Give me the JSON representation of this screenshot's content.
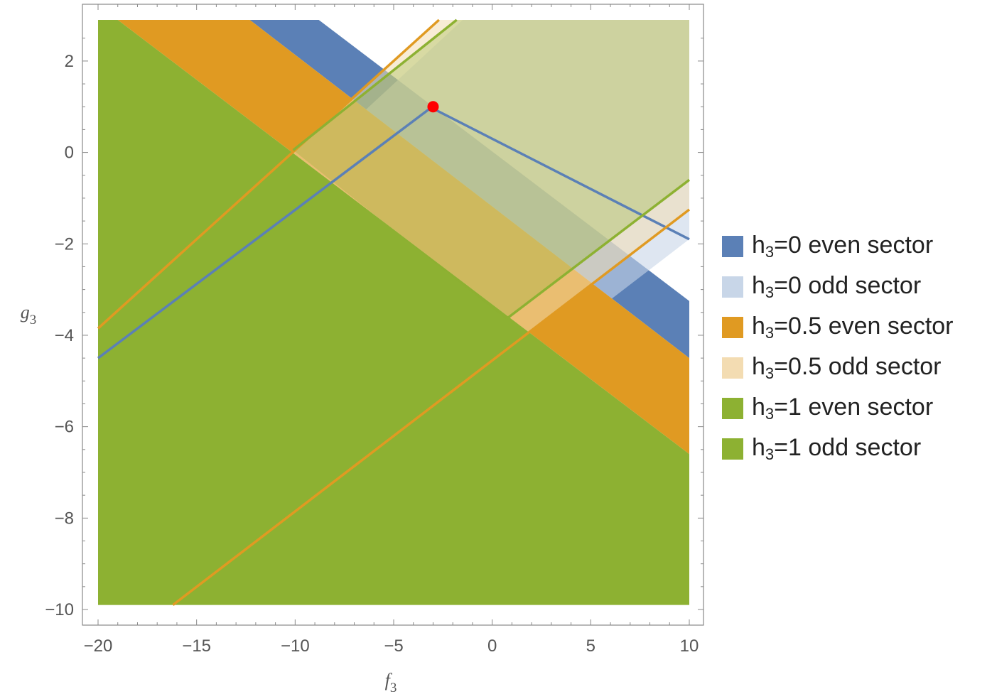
{
  "chart_data": {
    "type": "area",
    "title": "",
    "xlabel": "f",
    "xlabel_sub": "3",
    "ylabel": "g",
    "ylabel_sub": "3",
    "xlim": [
      -20,
      10
    ],
    "ylim": [
      -10,
      2.9
    ],
    "xticks": [
      -20,
      -15,
      -10,
      -5,
      0,
      5,
      10
    ],
    "yticks": [
      2,
      0,
      -2,
      -4,
      -6,
      -8,
      -10
    ],
    "xtick_labels": [
      "−20",
      "−15",
      "−10",
      "−5",
      "0",
      "5",
      "10"
    ],
    "ytick_labels": [
      "2",
      "0",
      "−2",
      "−4",
      "−6",
      "−8",
      "−10"
    ],
    "grid": false,
    "legend_position": "right",
    "series": [
      {
        "name": "h3=0 even sector",
        "legend_main": "h",
        "legend_sub": "3",
        "legend_rest": "=0 even sector",
        "color": "#5b80b6",
        "opacity": 1,
        "region": "band between two descending lines",
        "polygon": [
          [
            -12.3,
            2.9
          ],
          [
            -8.8,
            2.9
          ],
          [
            10,
            -3.25
          ],
          [
            10,
            -4.5
          ]
        ]
      },
      {
        "name": "h3=0 odd sector",
        "legend_main": "h",
        "legend_sub": "3",
        "legend_rest": "=0 odd sector",
        "color": "#c8d6e8",
        "opacity": 0.6,
        "region": "above the ascending line g = -3/5 + 8/15 (f + 3)",
        "polygon": [
          [
            -20,
            -4.5
          ],
          [
            -1.5,
            2.9
          ],
          [
            10,
            2.9
          ],
          [
            10,
            -1.9
          ],
          [
            -14.2,
            -9.9
          ],
          [
            -20,
            -9.9
          ]
        ]
      },
      {
        "name": "h3=0.5 even sector",
        "legend_main": "h",
        "legend_sub": "3",
        "legend_rest": "=0.5 even sector",
        "color": "#e09a22",
        "opacity": 1,
        "region": "band between two descending lines",
        "polygon": [
          [
            -19.0,
            2.9
          ],
          [
            -12.3,
            2.9
          ],
          [
            10,
            -4.5
          ],
          [
            10,
            -6.6
          ]
        ]
      },
      {
        "name": "h3=0.5 odd sector",
        "legend_main": "h",
        "legend_sub": "3",
        "legend_rest": "=0.5 odd sector",
        "color": "#f3dcb2",
        "opacity": 0.55,
        "region": "above the ascending lines",
        "polygon": [
          [
            -20,
            -3.85
          ],
          [
            -2.7,
            2.9
          ],
          [
            10,
            2.9
          ],
          [
            10,
            -1.25
          ],
          [
            -16.2,
            -9.9
          ],
          [
            -20,
            -9.9
          ]
        ]
      },
      {
        "name": "h3=1 even sector",
        "legend_main": "h",
        "legend_sub": "3",
        "legend_rest": "=1 even sector",
        "color": "#8db132",
        "opacity": 1,
        "region": "below the descending line",
        "polygon": [
          [
            -20,
            2.9
          ],
          [
            -19.0,
            2.9
          ],
          [
            10,
            -6.6
          ],
          [
            10,
            -9.9
          ],
          [
            -20,
            -9.9
          ]
        ]
      },
      {
        "name": "h3=1 odd sector",
        "legend_main": "h",
        "legend_sub": "3",
        "legend_rest": "=1 odd sector",
        "color": "#8db132",
        "opacity": 0.3,
        "region": "above the ascending line",
        "polygon": [
          [
            -10.1,
            0.05
          ],
          [
            -1.8,
            2.9
          ],
          [
            10,
            2.9
          ],
          [
            10,
            -0.6
          ],
          [
            0.7,
            -3.65
          ]
        ]
      }
    ],
    "boundary_lines": [
      {
        "color": "#5b80b6",
        "points": [
          [
            -20,
            -4.5
          ],
          [
            -3.1,
            0.98
          ],
          [
            10,
            -1.9
          ]
        ]
      },
      {
        "color": "#e09a22",
        "points": [
          [
            -20,
            -3.85
          ],
          [
            -2.7,
            2.9
          ]
        ]
      },
      {
        "color": "#e09a22",
        "points": [
          [
            -16.2,
            -9.9
          ],
          [
            10,
            -1.25
          ]
        ]
      },
      {
        "color": "#8db132",
        "points": [
          [
            -10.1,
            0.05
          ],
          [
            -1.8,
            2.9
          ]
        ]
      },
      {
        "color": "#8db132",
        "points": [
          [
            0.7,
            -3.65
          ],
          [
            10,
            -0.6
          ]
        ]
      }
    ],
    "marker": {
      "x": -3.0,
      "y": 1.0,
      "color": "#ff0000"
    }
  }
}
